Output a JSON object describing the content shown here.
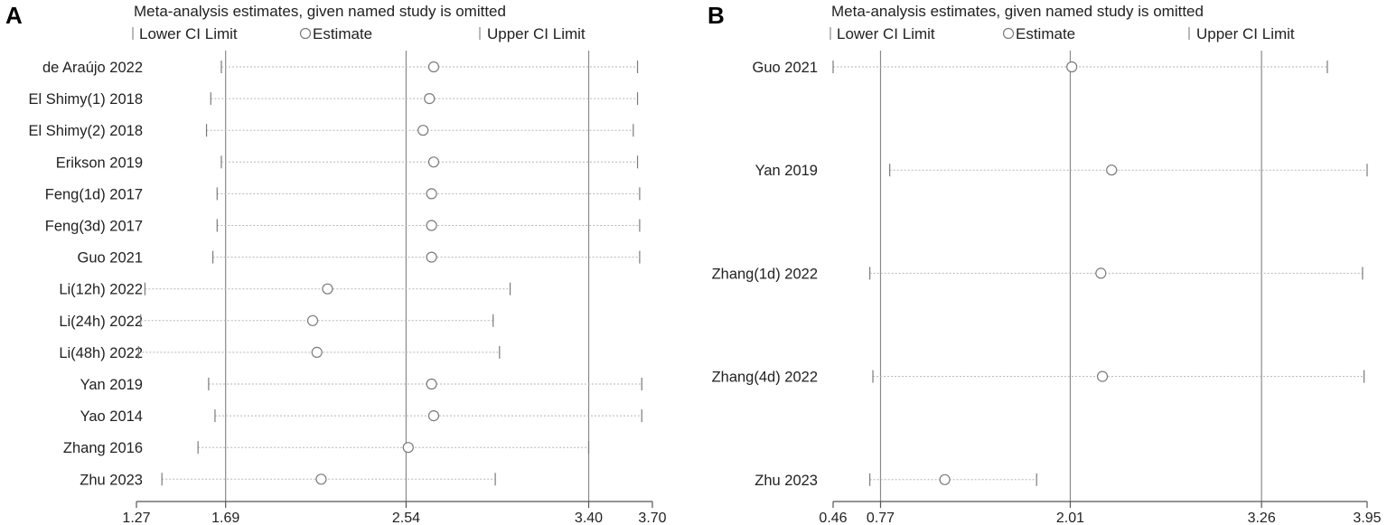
{
  "chart_data": [
    {
      "type": "forest",
      "panel_label": "A",
      "title": "Meta-analysis estimates, given named study is omitted",
      "legend": {
        "lower": "Lower CI Limit",
        "estimate": "Estimate",
        "upper": "Upper CI Limit"
      },
      "xlim": [
        1.27,
        3.7
      ],
      "xticks": [
        {
          "value": 1.27,
          "label": "1.27"
        },
        {
          "value": 1.69,
          "label": "1.69"
        },
        {
          "value": 2.54,
          "label": "2.54"
        },
        {
          "value": 3.4,
          "label": "3.40"
        },
        {
          "value": 3.7,
          "label": "3.70"
        }
      ],
      "reference_lines": [
        1.69,
        2.54,
        3.4
      ],
      "studies": [
        {
          "name": "de Araújo 2022",
          "lower": 1.67,
          "estimate": 2.67,
          "upper": 3.63
        },
        {
          "name": "El Shimy(1) 2018",
          "lower": 1.62,
          "estimate": 2.65,
          "upper": 3.63
        },
        {
          "name": "El Shimy(2) 2018",
          "lower": 1.6,
          "estimate": 2.62,
          "upper": 3.61
        },
        {
          "name": "Erikson 2019",
          "lower": 1.67,
          "estimate": 2.67,
          "upper": 3.63
        },
        {
          "name": "Feng(1d) 2017",
          "lower": 1.65,
          "estimate": 2.66,
          "upper": 3.64
        },
        {
          "name": "Feng(3d) 2017",
          "lower": 1.65,
          "estimate": 2.66,
          "upper": 3.64
        },
        {
          "name": "Guo 2021",
          "lower": 1.63,
          "estimate": 2.66,
          "upper": 3.64
        },
        {
          "name": "Li(12h) 2022",
          "lower": 1.31,
          "estimate": 2.17,
          "upper": 3.03
        },
        {
          "name": "Li(24h) 2022",
          "lower": 1.29,
          "estimate": 2.1,
          "upper": 2.95
        },
        {
          "name": "Li(48h) 2022",
          "lower": 1.28,
          "estimate": 2.12,
          "upper": 2.98
        },
        {
          "name": "Yan 2019",
          "lower": 1.61,
          "estimate": 2.66,
          "upper": 3.65
        },
        {
          "name": "Yao 2014",
          "lower": 1.64,
          "estimate": 2.67,
          "upper": 3.65
        },
        {
          "name": "Zhang 2016",
          "lower": 1.56,
          "estimate": 2.55,
          "upper": 3.4
        },
        {
          "name": "Zhu 2023",
          "lower": 1.39,
          "estimate": 2.14,
          "upper": 2.96
        }
      ]
    },
    {
      "type": "forest",
      "panel_label": "B",
      "title": "Meta-analysis estimates, given named study is omitted",
      "legend": {
        "lower": "Lower CI Limit",
        "estimate": "Estimate",
        "upper": "Upper CI Limit"
      },
      "xlim": [
        0.46,
        3.95
      ],
      "xticks": [
        {
          "value": 0.46,
          "label": "0.46"
        },
        {
          "value": 0.77,
          "label": "0.77"
        },
        {
          "value": 2.01,
          "label": "2.01"
        },
        {
          "value": 3.26,
          "label": "3.26"
        },
        {
          "value": 3.95,
          "label": "3.95"
        }
      ],
      "reference_lines": [
        0.77,
        2.01,
        3.26
      ],
      "studies": [
        {
          "name": "Guo 2021",
          "lower": 0.46,
          "estimate": 2.02,
          "upper": 3.69
        },
        {
          "name": "Yan 2019",
          "lower": 0.83,
          "estimate": 2.28,
          "upper": 3.95
        },
        {
          "name": "Zhang(1d) 2022",
          "lower": 0.7,
          "estimate": 2.21,
          "upper": 3.92
        },
        {
          "name": "Zhang(4d) 2022",
          "lower": 0.72,
          "estimate": 2.22,
          "upper": 3.93
        },
        {
          "name": "Zhu 2023",
          "lower": 0.7,
          "estimate": 1.19,
          "upper": 1.79
        }
      ]
    }
  ]
}
